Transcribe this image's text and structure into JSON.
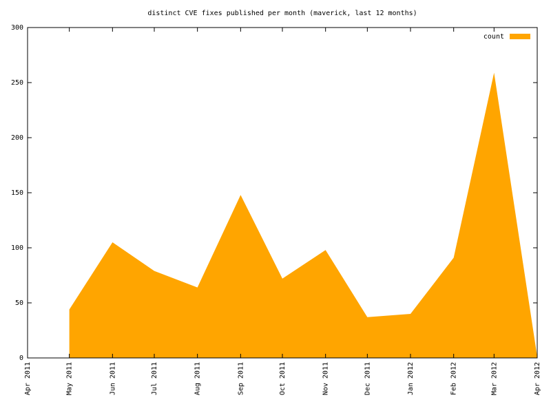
{
  "chart_data": {
    "type": "area",
    "title": "distinct CVE fixes published per month (maverick, last 12 months)",
    "x": [
      "2011-05",
      "2011-06",
      "2011-07",
      "2011-08",
      "2011-09",
      "2011-10",
      "2011-11",
      "2011-12",
      "2012-01",
      "2012-02",
      "2012-03",
      "2012-04"
    ],
    "series": [
      {
        "name": "count",
        "color": "#ffa500",
        "values": [
          44,
          105,
          79,
          64,
          148,
          72,
          98,
          37,
          40,
          91,
          259,
          1
        ]
      }
    ],
    "xlim": [
      "2011-04",
      "2012-04"
    ],
    "xticks": [
      {
        "value": "2011-04",
        "label": "Apr 2011"
      },
      {
        "value": "2011-05",
        "label": "May 2011"
      },
      {
        "value": "2011-06",
        "label": "Jun 2011"
      },
      {
        "value": "2011-07",
        "label": "Jul 2011"
      },
      {
        "value": "2011-08",
        "label": "Aug 2011"
      },
      {
        "value": "2011-09",
        "label": "Sep 2011"
      },
      {
        "value": "2011-10",
        "label": "Oct 2011"
      },
      {
        "value": "2011-11",
        "label": "Nov 2011"
      },
      {
        "value": "2011-12",
        "label": "Dec 2011"
      },
      {
        "value": "2012-01",
        "label": "Jan 2012"
      },
      {
        "value": "2012-02",
        "label": "Feb 2012"
      },
      {
        "value": "2012-03",
        "label": "Mar 2012"
      },
      {
        "value": "2012-04",
        "label": "Apr 2012"
      }
    ],
    "ylim": [
      0,
      300
    ],
    "yticks": [
      0,
      50,
      100,
      150,
      200,
      250,
      300
    ],
    "legend": "top-right",
    "grid": false
  }
}
